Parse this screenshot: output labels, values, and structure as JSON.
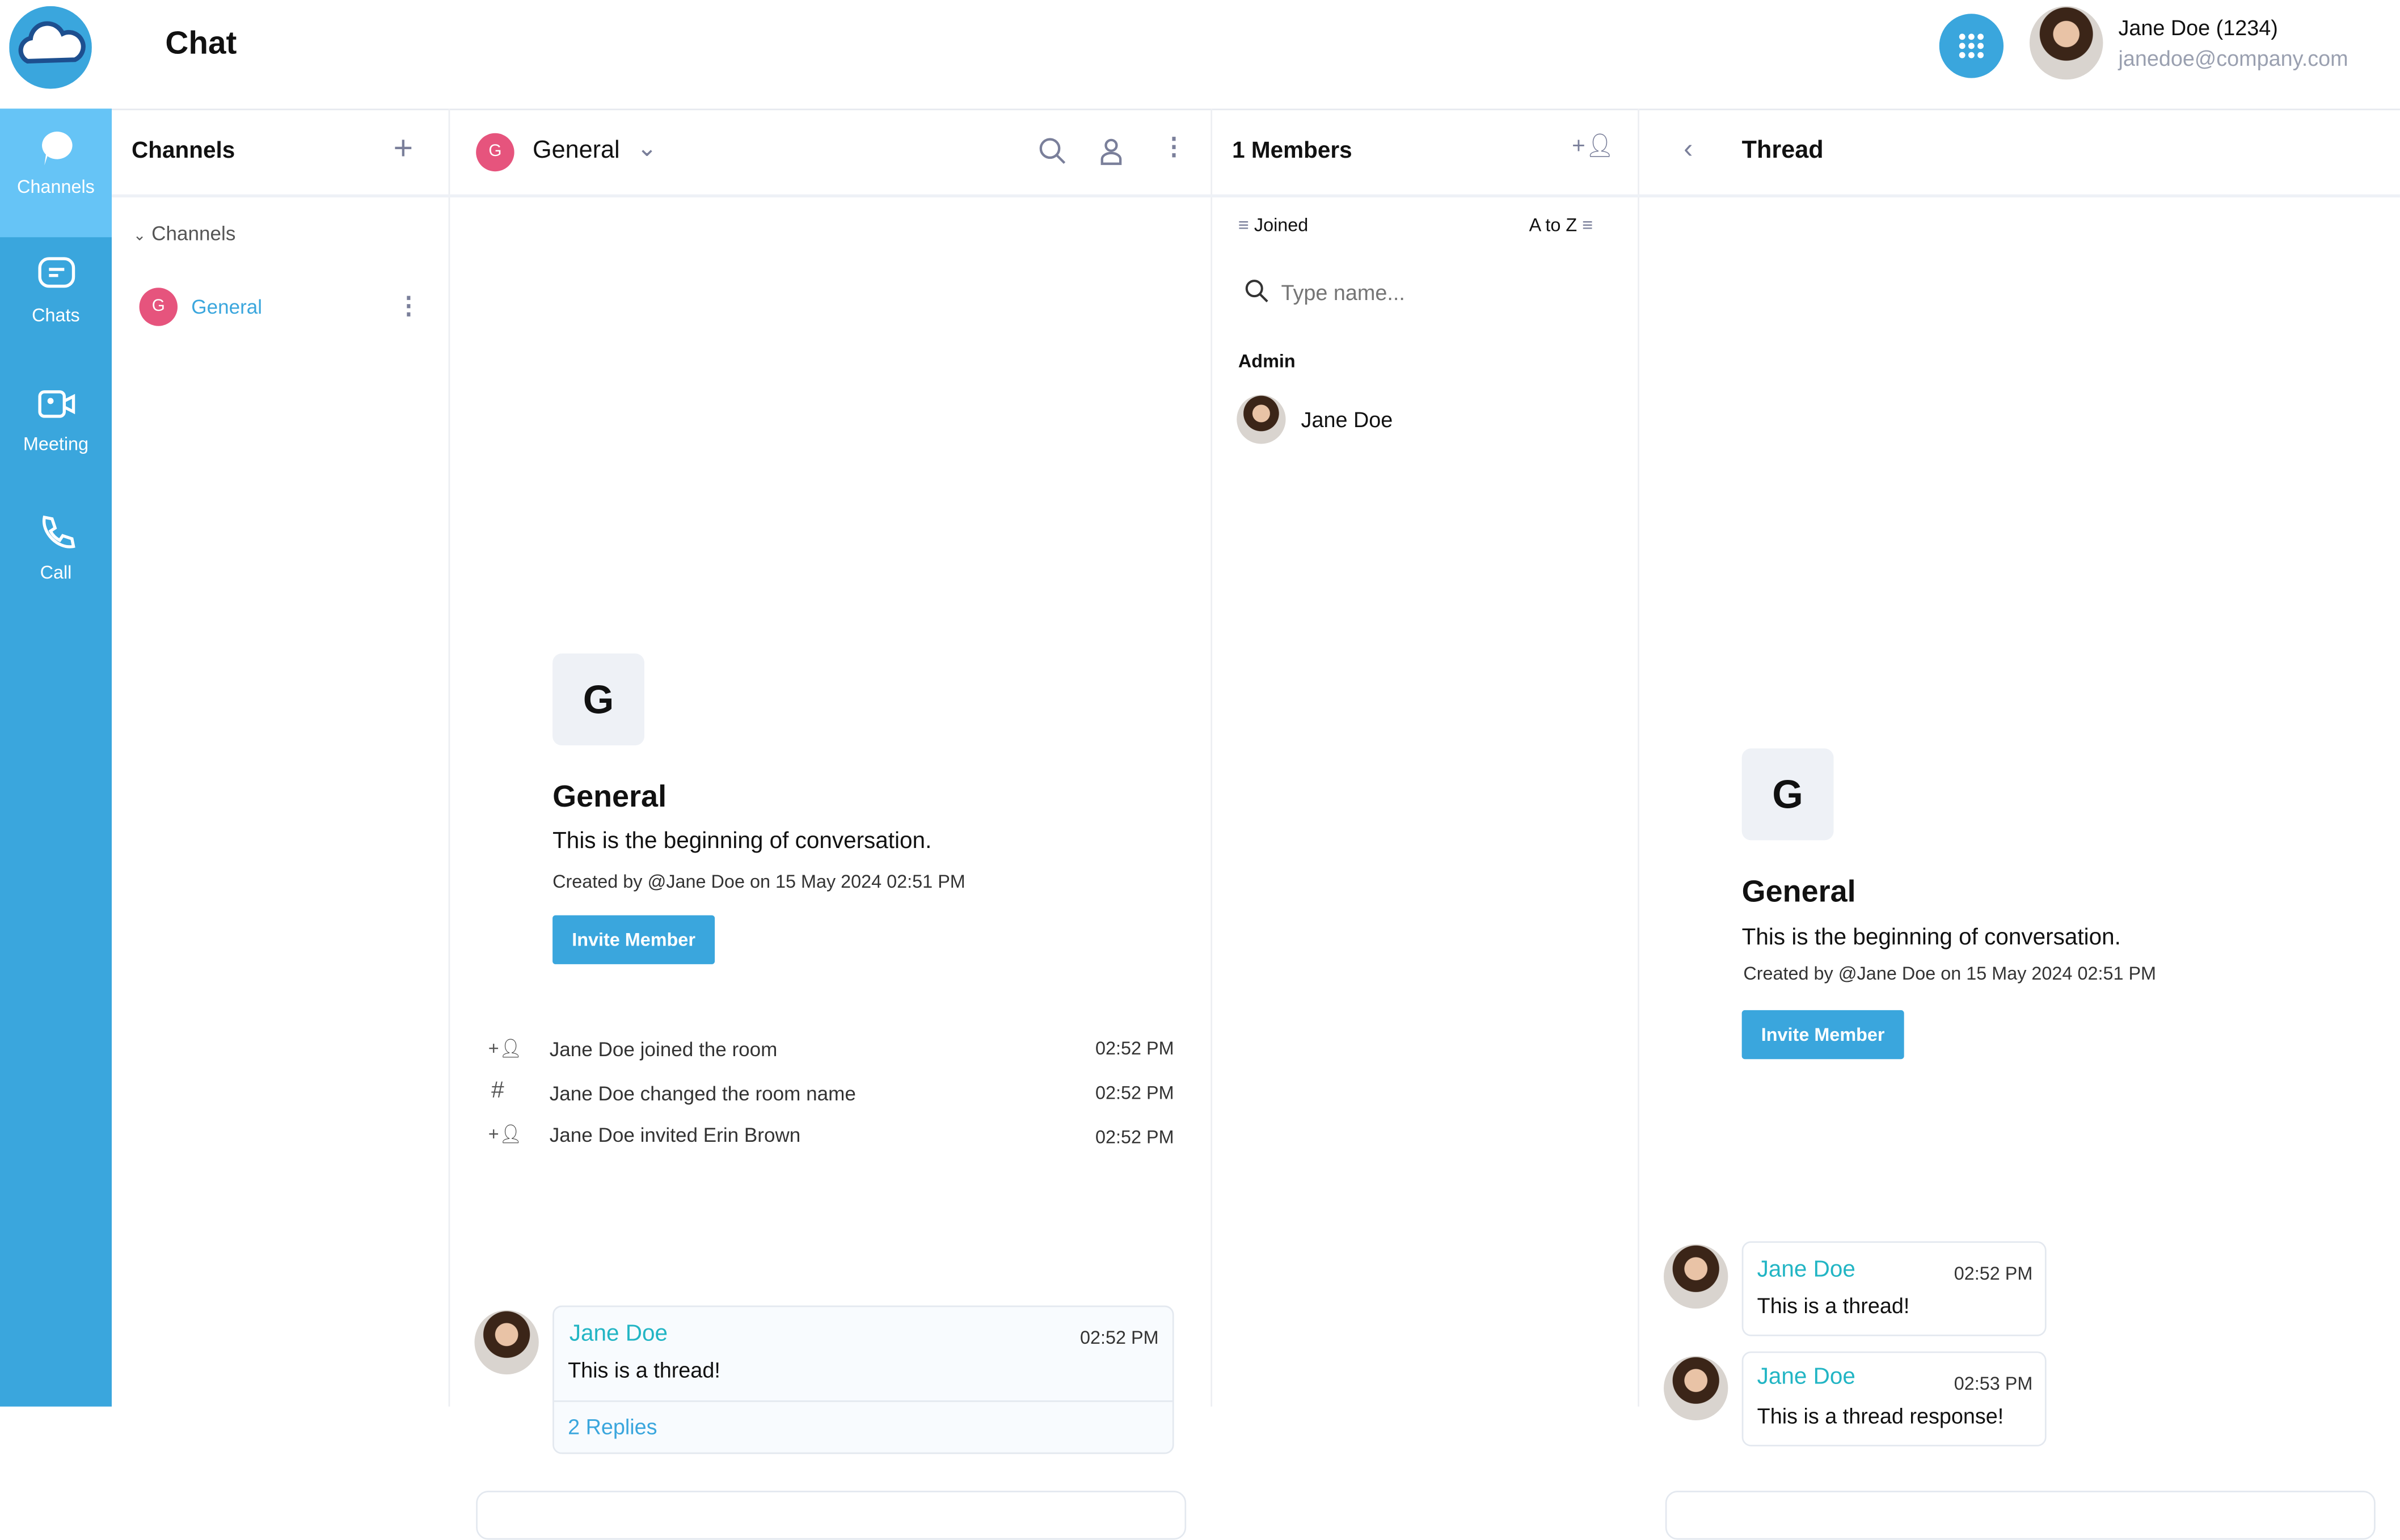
{
  "app": {
    "title": "Chat"
  },
  "user": {
    "name": "Jane Doe (1234)",
    "email": "janedoe@company.com"
  },
  "rail": [
    {
      "label": "Channels",
      "icon": "channels-icon"
    },
    {
      "label": "Chats",
      "icon": "chat-bubble-icon"
    },
    {
      "label": "Meeting",
      "icon": "video-icon"
    },
    {
      "label": "Call",
      "icon": "phone-icon"
    }
  ],
  "channels": {
    "title": "Channels",
    "group": "Channels",
    "items": [
      {
        "initial": "G",
        "name": "General"
      }
    ]
  },
  "chat": {
    "channel": "General",
    "initial": "G",
    "intro_initial": "G",
    "intro_title": "General",
    "intro_text": "This is the beginning of conversation.",
    "created": "Created by @Jane Doe on 15 May 2024 02:51 PM",
    "invite": "Invite Member",
    "events": [
      {
        "text": "Jane Doe joined the room",
        "time": "02:52 PM",
        "icon": "add-user-icon"
      },
      {
        "text": "Jane Doe changed the room name",
        "time": "02:52 PM",
        "icon": "hash-icon"
      },
      {
        "text": "Jane Doe invited Erin Brown",
        "time": "02:52 PM",
        "icon": "add-user-icon"
      }
    ],
    "message": {
      "author": "Jane Doe",
      "time": "02:52 PM",
      "text": "This is a thread!",
      "replies": "2 Replies"
    }
  },
  "members": {
    "title": "1 Members",
    "filter": "Joined",
    "sort": "A to Z",
    "search_placeholder": "Type name...",
    "group": "Admin",
    "items": [
      {
        "name": "Jane Doe"
      }
    ]
  },
  "thread": {
    "title": "Thread",
    "intro_initial": "G",
    "intro_title": "General",
    "intro_text": "This is the beginning of conversation.",
    "created": "Created by @Jane Doe on 15 May 2024 02:51 PM",
    "invite": "Invite Member",
    "messages": [
      {
        "author": "Jane Doe",
        "time": "02:52 PM",
        "text": "This is a thread!"
      },
      {
        "author": "Jane Doe",
        "time": "02:53 PM",
        "text": "This is a thread response!"
      }
    ]
  },
  "colors": {
    "accent": "#3aa6dd",
    "rail_active": "#66c4f6",
    "channel_avatar": "#e6547d",
    "author": "#22b5c4"
  }
}
